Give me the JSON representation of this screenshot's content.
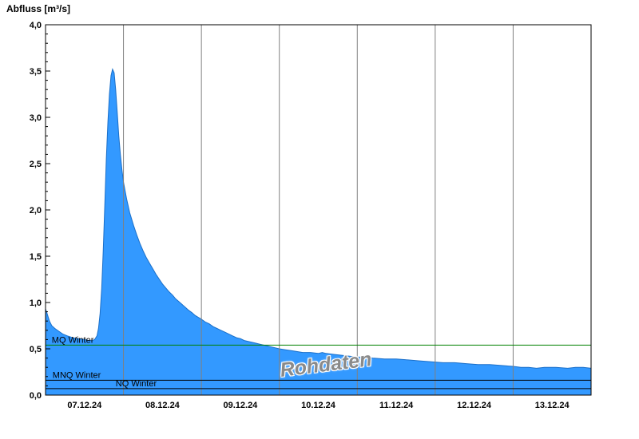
{
  "chart_data": {
    "type": "area",
    "title": "Abfluss [m³/s]",
    "watermark": "Rohdaten",
    "ylabel": "Abfluss [m³/s]",
    "ylim": [
      0.0,
      4.0
    ],
    "ytick_step": 0.5,
    "ytick_labels": [
      "0,0",
      "0,5",
      "1,0",
      "1,5",
      "2,0",
      "2,5",
      "3,0",
      "3,5",
      "4,0"
    ],
    "x_days_total": 7,
    "x_tick_labels": [
      "07.12.24",
      "08.12.24",
      "09.12.24",
      "10.12.24",
      "11.12.24",
      "12.12.24",
      "13.12.24"
    ],
    "grid": true,
    "legend_position": "none",
    "series": {
      "name": "Abfluss Rohdaten",
      "unit": "m³/s",
      "points": [
        [
          0.0,
          0.93
        ],
        [
          0.02,
          0.88
        ],
        [
          0.05,
          0.8
        ],
        [
          0.08,
          0.75
        ],
        [
          0.12,
          0.72
        ],
        [
          0.17,
          0.69
        ],
        [
          0.22,
          0.66
        ],
        [
          0.28,
          0.64
        ],
        [
          0.35,
          0.62
        ],
        [
          0.42,
          0.61
        ],
        [
          0.5,
          0.6
        ],
        [
          0.56,
          0.59
        ],
        [
          0.6,
          0.59
        ],
        [
          0.63,
          0.6
        ],
        [
          0.66,
          0.64
        ],
        [
          0.68,
          0.72
        ],
        [
          0.7,
          0.88
        ],
        [
          0.72,
          1.15
        ],
        [
          0.74,
          1.55
        ],
        [
          0.76,
          2.05
        ],
        [
          0.78,
          2.55
        ],
        [
          0.8,
          2.95
        ],
        [
          0.82,
          3.25
        ],
        [
          0.84,
          3.45
        ],
        [
          0.86,
          3.52
        ],
        [
          0.88,
          3.48
        ],
        [
          0.9,
          3.3
        ],
        [
          0.92,
          3.05
        ],
        [
          0.94,
          2.8
        ],
        [
          0.96,
          2.6
        ],
        [
          0.98,
          2.44
        ],
        [
          1.0,
          2.3
        ],
        [
          1.04,
          2.12
        ],
        [
          1.08,
          1.97
        ],
        [
          1.13,
          1.83
        ],
        [
          1.17,
          1.73
        ],
        [
          1.21,
          1.64
        ],
        [
          1.25,
          1.56
        ],
        [
          1.29,
          1.49
        ],
        [
          1.33,
          1.43
        ],
        [
          1.38,
          1.36
        ],
        [
          1.42,
          1.3
        ],
        [
          1.46,
          1.25
        ],
        [
          1.5,
          1.2
        ],
        [
          1.54,
          1.16
        ],
        [
          1.58,
          1.12
        ],
        [
          1.63,
          1.08
        ],
        [
          1.67,
          1.04
        ],
        [
          1.71,
          1.01
        ],
        [
          1.75,
          0.98
        ],
        [
          1.79,
          0.95
        ],
        [
          1.83,
          0.92
        ],
        [
          1.88,
          0.89
        ],
        [
          1.92,
          0.86
        ],
        [
          1.96,
          0.84
        ],
        [
          2.0,
          0.82
        ],
        [
          2.05,
          0.79
        ],
        [
          2.1,
          0.77
        ],
        [
          2.15,
          0.74
        ],
        [
          2.2,
          0.72
        ],
        [
          2.25,
          0.7
        ],
        [
          2.3,
          0.68
        ],
        [
          2.35,
          0.66
        ],
        [
          2.4,
          0.64
        ],
        [
          2.45,
          0.62
        ],
        [
          2.5,
          0.61
        ],
        [
          2.55,
          0.59
        ],
        [
          2.6,
          0.58
        ],
        [
          2.65,
          0.57
        ],
        [
          2.7,
          0.56
        ],
        [
          2.75,
          0.55
        ],
        [
          2.8,
          0.54
        ],
        [
          2.85,
          0.53
        ],
        [
          2.9,
          0.52
        ],
        [
          2.95,
          0.51
        ],
        [
          3.0,
          0.5
        ],
        [
          3.08,
          0.49
        ],
        [
          3.15,
          0.48
        ],
        [
          3.23,
          0.47
        ],
        [
          3.3,
          0.46
        ],
        [
          3.4,
          0.46
        ],
        [
          3.5,
          0.45
        ],
        [
          3.55,
          0.46
        ],
        [
          3.6,
          0.45
        ],
        [
          3.7,
          0.44
        ],
        [
          3.8,
          0.43
        ],
        [
          3.9,
          0.42
        ],
        [
          4.0,
          0.41
        ],
        [
          4.1,
          0.41
        ],
        [
          4.2,
          0.4
        ],
        [
          4.35,
          0.39
        ],
        [
          4.5,
          0.39
        ],
        [
          4.65,
          0.38
        ],
        [
          4.8,
          0.37
        ],
        [
          4.95,
          0.36
        ],
        [
          5.1,
          0.35
        ],
        [
          5.25,
          0.35
        ],
        [
          5.4,
          0.34
        ],
        [
          5.55,
          0.33
        ],
        [
          5.7,
          0.33
        ],
        [
          5.85,
          0.32
        ],
        [
          6.0,
          0.31
        ],
        [
          6.1,
          0.3
        ],
        [
          6.2,
          0.3
        ],
        [
          6.3,
          0.29
        ],
        [
          6.4,
          0.3
        ],
        [
          6.55,
          0.3
        ],
        [
          6.7,
          0.29
        ],
        [
          6.8,
          0.3
        ],
        [
          6.9,
          0.3
        ],
        [
          7.0,
          0.29
        ]
      ]
    },
    "reflines": [
      {
        "label": "MQ Winter",
        "value": 0.54,
        "color": "#008000",
        "label_day": 0.08
      },
      {
        "label": "MNQ Winter",
        "value": 0.16,
        "color": "#000000",
        "label_day": 0.09
      },
      {
        "label": "NQ Winter",
        "value": 0.07,
        "color": "#000000",
        "label_day": 0.9
      }
    ],
    "colors": {
      "area_fill": "#3399ff",
      "area_stroke": "#1a6fc9",
      "grid": "#808080",
      "frame": "#000000",
      "text": "#000000",
      "background": "#ffffff",
      "watermark": "#8a8a8a"
    }
  }
}
